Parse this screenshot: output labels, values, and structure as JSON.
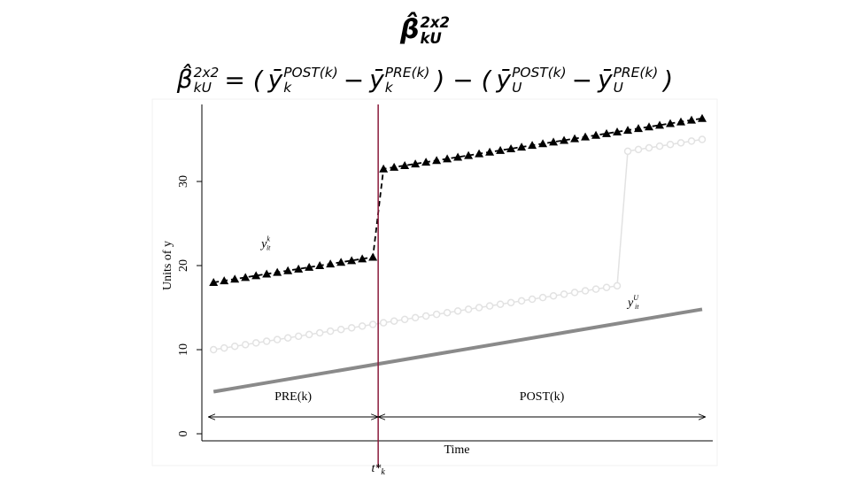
{
  "chart_data": {
    "type": "line",
    "title": {
      "text": "β̂",
      "sup": "2x2",
      "sub": "kU"
    },
    "formula": [
      {
        "text": "β̂",
        "sup": "2x2",
        "sub": "kU"
      },
      {
        "text": "= ("
      },
      {
        "text": "ȳ",
        "sup": "POST(k)",
        "sub": "k"
      },
      {
        "text": "−"
      },
      {
        "text": "ȳ",
        "sup": "PRE(k)",
        "sub": "k"
      },
      {
        "text": ") − ("
      },
      {
        "text": "ȳ",
        "sup": "POST(k)",
        "sub": "U"
      },
      {
        "text": "−"
      },
      {
        "text": "ȳ",
        "sup": "PRE(k)",
        "sub": "U"
      },
      {
        "text": ")"
      }
    ],
    "y_label": "Units of y",
    "x_label": "Time",
    "x": [
      0,
      1,
      2,
      3,
      4,
      5,
      6,
      7,
      8,
      9,
      10,
      11,
      12,
      13,
      14,
      15,
      16,
      17,
      18,
      19,
      20,
      21,
      22,
      23,
      24,
      25,
      26,
      27,
      28,
      29,
      30,
      31,
      32,
      33,
      34,
      35,
      36,
      37,
      38,
      39,
      40,
      41,
      42,
      43,
      44,
      45,
      46
    ],
    "series": [
      {
        "color": "#000000",
        "marker": "triangle",
        "line": "dashed",
        "values": [
          18,
          18.2,
          18.4,
          18.6,
          18.8,
          19,
          19.2,
          19.4,
          19.6,
          19.8,
          20,
          20.2,
          20.4,
          20.6,
          20.8,
          21,
          31.5,
          31.7,
          31.9,
          32.1,
          32.3,
          32.5,
          32.7,
          32.9,
          33.1,
          33.3,
          33.5,
          33.7,
          33.9,
          34.1,
          34.3,
          34.5,
          34.7,
          34.9,
          35.1,
          35.3,
          35.5,
          35.7,
          35.9,
          36.1,
          36.3,
          36.5,
          36.7,
          36.9,
          37.1,
          37.3,
          37.5
        ]
      },
      {
        "color": "#e2e2e2",
        "marker": "circle",
        "line": "solid",
        "values": [
          10,
          10.2,
          10.4,
          10.6,
          10.8,
          11,
          11.2,
          11.4,
          11.6,
          11.8,
          12,
          12.2,
          12.4,
          12.6,
          12.8,
          13,
          13.2,
          13.4,
          13.6,
          13.8,
          14,
          14.2,
          14.4,
          14.6,
          14.8,
          15,
          15.2,
          15.4,
          15.6,
          15.8,
          16,
          16.2,
          16.4,
          16.6,
          16.8,
          17,
          17.2,
          17.4,
          17.6,
          33.6,
          33.8,
          34,
          34.2,
          34.4,
          34.6,
          34.8,
          35
        ]
      },
      {
        "color": "#8a8a8a",
        "marker": "none",
        "line": "solid",
        "x": [
          0,
          46
        ],
        "values": [
          5,
          14.8
        ]
      }
    ],
    "annotations": [
      {
        "text": "y",
        "sup": "k",
        "sub": "it",
        "x": 4.5,
        "y": 22.5
      },
      {
        "text": "y",
        "sup": "U",
        "sub": "it",
        "x": 39,
        "y": 15.5
      }
    ],
    "treatment_x": 15.5,
    "treatment_label": {
      "text": "t*",
      "sub": "k"
    },
    "treatment_color": "#8b1a3a",
    "periods": [
      "PRE(k)",
      "POST(k)"
    ],
    "xlim": [
      -1.1,
      47
    ],
    "ylim": [
      -0.84,
      39.16
    ],
    "yticks": [
      0,
      10,
      20,
      30
    ]
  }
}
